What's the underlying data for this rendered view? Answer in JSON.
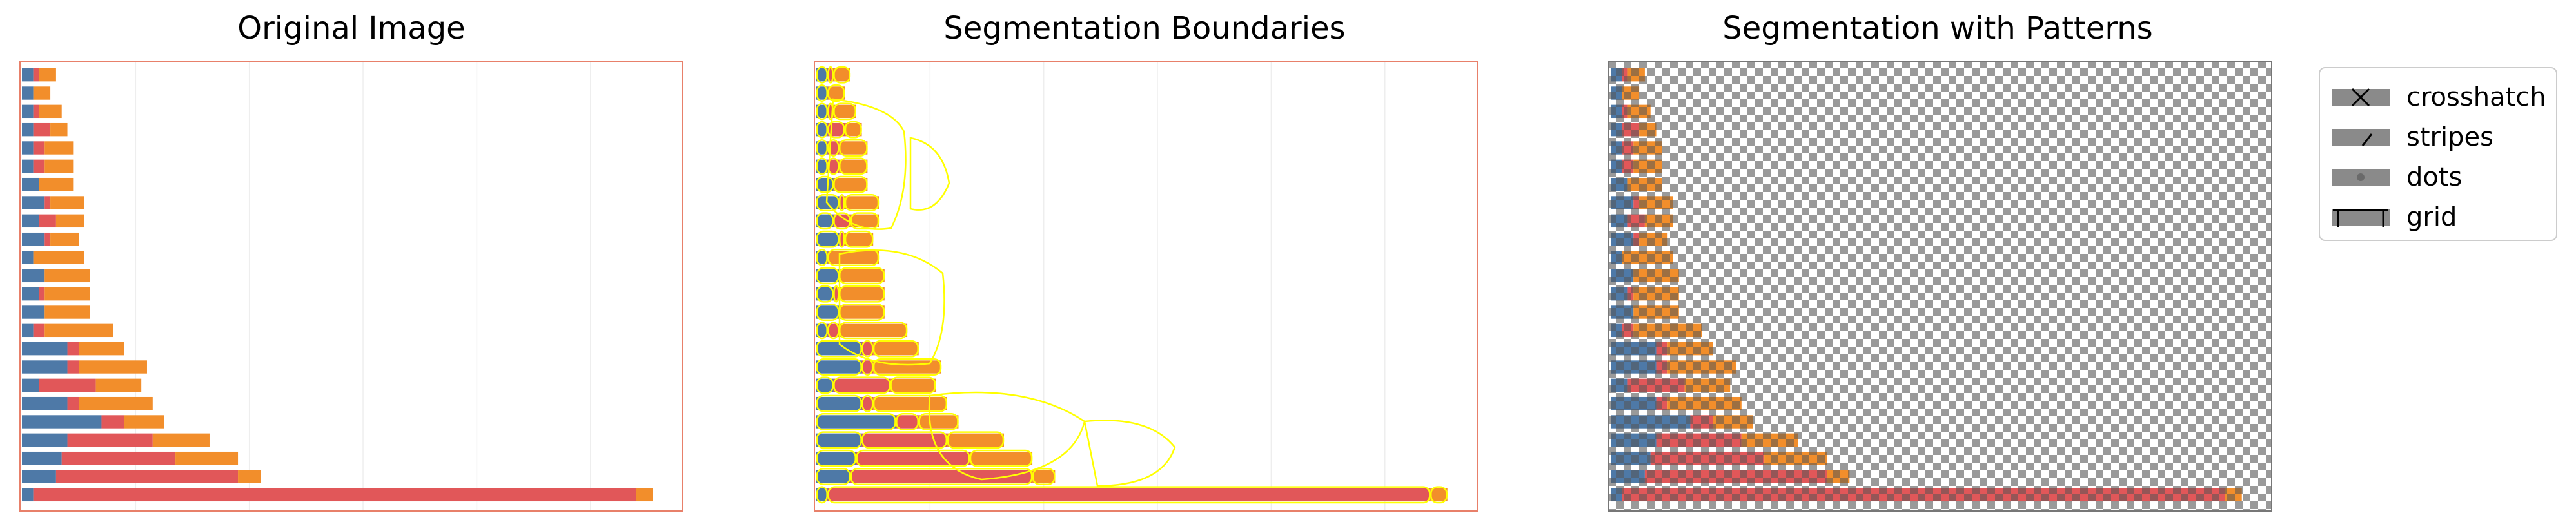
{
  "panels": {
    "original": {
      "title": "Original Image"
    },
    "boundaries": {
      "title": "Segmentation Boundaries"
    },
    "patterns": {
      "title": "Segmentation with Patterns"
    }
  },
  "legend": {
    "items": [
      {
        "label": "crosshatch",
        "icon": "crosshatch-icon"
      },
      {
        "label": "stripes",
        "icon": "stripes-icon"
      },
      {
        "label": "dots",
        "icon": "dots-icon"
      },
      {
        "label": "grid",
        "icon": "grid-icon"
      }
    ]
  },
  "colors": {
    "blue": "#4e79a7",
    "red": "#e15759",
    "orange": "#f28e2b",
    "frame": "#e8806a",
    "boundary": "#ffff00",
    "pattern_gray": "#9a9a9a"
  },
  "chart_data": {
    "type": "bar",
    "stacked": true,
    "orientation": "horizontal",
    "rows": [
      [
        2,
        1,
        3
      ],
      [
        2,
        0,
        3
      ],
      [
        2,
        1,
        4
      ],
      [
        2,
        3,
        3
      ],
      [
        2,
        2,
        5
      ],
      [
        2,
        2,
        5
      ],
      [
        3,
        0,
        6
      ],
      [
        4,
        1,
        6
      ],
      [
        3,
        3,
        5
      ],
      [
        4,
        1,
        5
      ],
      [
        2,
        0,
        9
      ],
      [
        4,
        0,
        8
      ],
      [
        3,
        1,
        8
      ],
      [
        4,
        0,
        8
      ],
      [
        2,
        2,
        12
      ],
      [
        8,
        2,
        8
      ],
      [
        8,
        2,
        12
      ],
      [
        3,
        10,
        8
      ],
      [
        8,
        2,
        13
      ],
      [
        14,
        4,
        7
      ],
      [
        8,
        15,
        10
      ],
      [
        7,
        20,
        11
      ],
      [
        6,
        32,
        4
      ],
      [
        2,
        106,
        3
      ]
    ],
    "xlim": [
      0,
      115
    ],
    "grid": true
  }
}
